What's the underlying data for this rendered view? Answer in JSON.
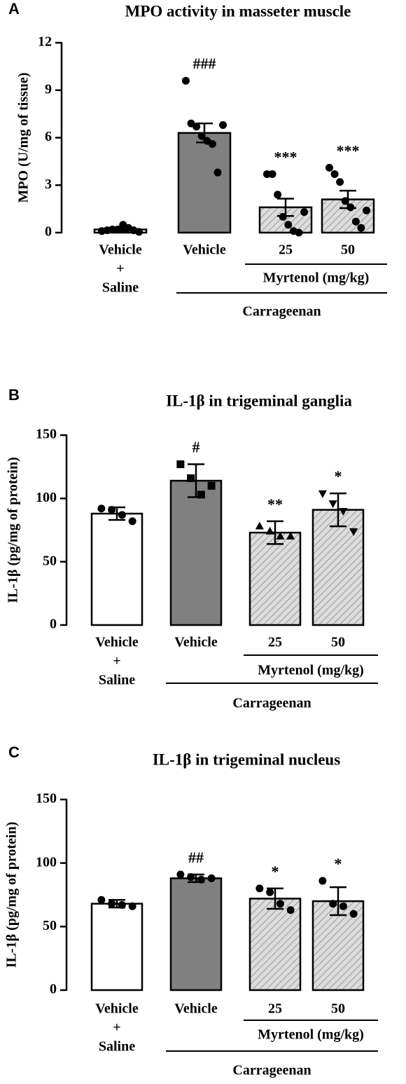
{
  "chart_data": [
    {
      "type": "bar",
      "panel_label": "A",
      "title": "MPO activity in masseter muscle",
      "ylabel": "MPO (U/mg of tissue)",
      "categories": [
        [
          "Vehicle",
          "+",
          "Saline"
        ],
        [
          "Vehicle"
        ],
        [
          "25"
        ],
        [
          "50"
        ]
      ],
      "values": [
        0.2,
        6.3,
        1.6,
        2.1
      ],
      "errors": [
        0.1,
        0.6,
        0.55,
        0.55
      ],
      "points": [
        [
          0.1,
          0.15,
          0.2,
          0.2,
          0.5,
          0.3,
          0.15,
          0.05
        ],
        [
          9.6,
          6.9,
          6.7,
          6.1,
          5.8,
          5.6,
          3.8,
          6.8
        ],
        [
          3.7,
          3.7,
          2.4,
          1.0,
          0.5,
          0.1,
          0.0,
          1.3
        ],
        [
          4.1,
          3.7,
          3.2,
          2.0,
          1.6,
          0.7,
          0.3,
          1.4
        ]
      ],
      "markers": [
        "circle",
        "circle",
        "circle",
        "circle"
      ],
      "bar_colors": [
        "#ffffff",
        "#808080",
        "#d9d9d9",
        "#d9d9d9"
      ],
      "hatched": [
        false,
        false,
        true,
        true
      ],
      "annotations": [
        null,
        "###",
        "***",
        "***"
      ],
      "group_labels": [
        "Myrtenol (mg/kg)",
        "Carrageenan"
      ],
      "ylim": [
        0,
        12
      ],
      "yticks": [
        0,
        3,
        6,
        9,
        12
      ]
    },
    {
      "type": "bar",
      "panel_label": "B",
      "title": "IL-1β in trigeminal ganglia",
      "ylabel": "IL-1β (pg/mg of protein)",
      "categories": [
        [
          "Vehicle",
          "+",
          "Saline"
        ],
        [
          "Vehicle"
        ],
        [
          "25"
        ],
        [
          "50"
        ]
      ],
      "values": [
        88,
        114,
        73,
        91
      ],
      "errors": [
        5,
        13,
        9,
        13
      ],
      "points": [
        [
          92,
          91,
          87,
          82
        ],
        [
          127,
          116,
          103,
          110
        ],
        [
          78,
          74,
          70,
          70
        ],
        [
          104,
          96,
          90,
          74
        ]
      ],
      "markers": [
        "circle",
        "square",
        "triangle-up",
        "triangle-down"
      ],
      "bar_colors": [
        "#ffffff",
        "#808080",
        "#d9d9d9",
        "#d9d9d9"
      ],
      "hatched": [
        false,
        false,
        true,
        true
      ],
      "annotations": [
        null,
        "#",
        "**",
        "*"
      ],
      "group_labels": [
        "Myrtenol (mg/kg)",
        "Carrageenan"
      ],
      "ylim": [
        0,
        150
      ],
      "yticks": [
        0,
        50,
        100,
        150
      ]
    },
    {
      "type": "bar",
      "panel_label": "C",
      "title": "IL-1β in trigeminal nucleus",
      "ylabel": "IL-1β (pg/mg of protein)",
      "categories": [
        [
          "Vehicle",
          "+",
          "Saline"
        ],
        [
          "Vehicle"
        ],
        [
          "25"
        ],
        [
          "50"
        ]
      ],
      "values": [
        68,
        88,
        72,
        70
      ],
      "errors": [
        3,
        3,
        8,
        11
      ],
      "points": [
        [
          71,
          68,
          67,
          66
        ],
        [
          91,
          89,
          87,
          88
        ],
        [
          80,
          77,
          68,
          63
        ],
        [
          86,
          68,
          66,
          60
        ]
      ],
      "markers": [
        "circle",
        "circle",
        "circle",
        "circle"
      ],
      "bar_colors": [
        "#ffffff",
        "#808080",
        "#d9d9d9",
        "#d9d9d9"
      ],
      "hatched": [
        false,
        false,
        true,
        true
      ],
      "annotations": [
        null,
        "##",
        "*",
        "*"
      ],
      "group_labels": [
        "Myrtenol (mg/kg)",
        "Carrageenan"
      ],
      "ylim": [
        0,
        150
      ],
      "yticks": [
        0,
        50,
        100,
        150
      ]
    }
  ]
}
